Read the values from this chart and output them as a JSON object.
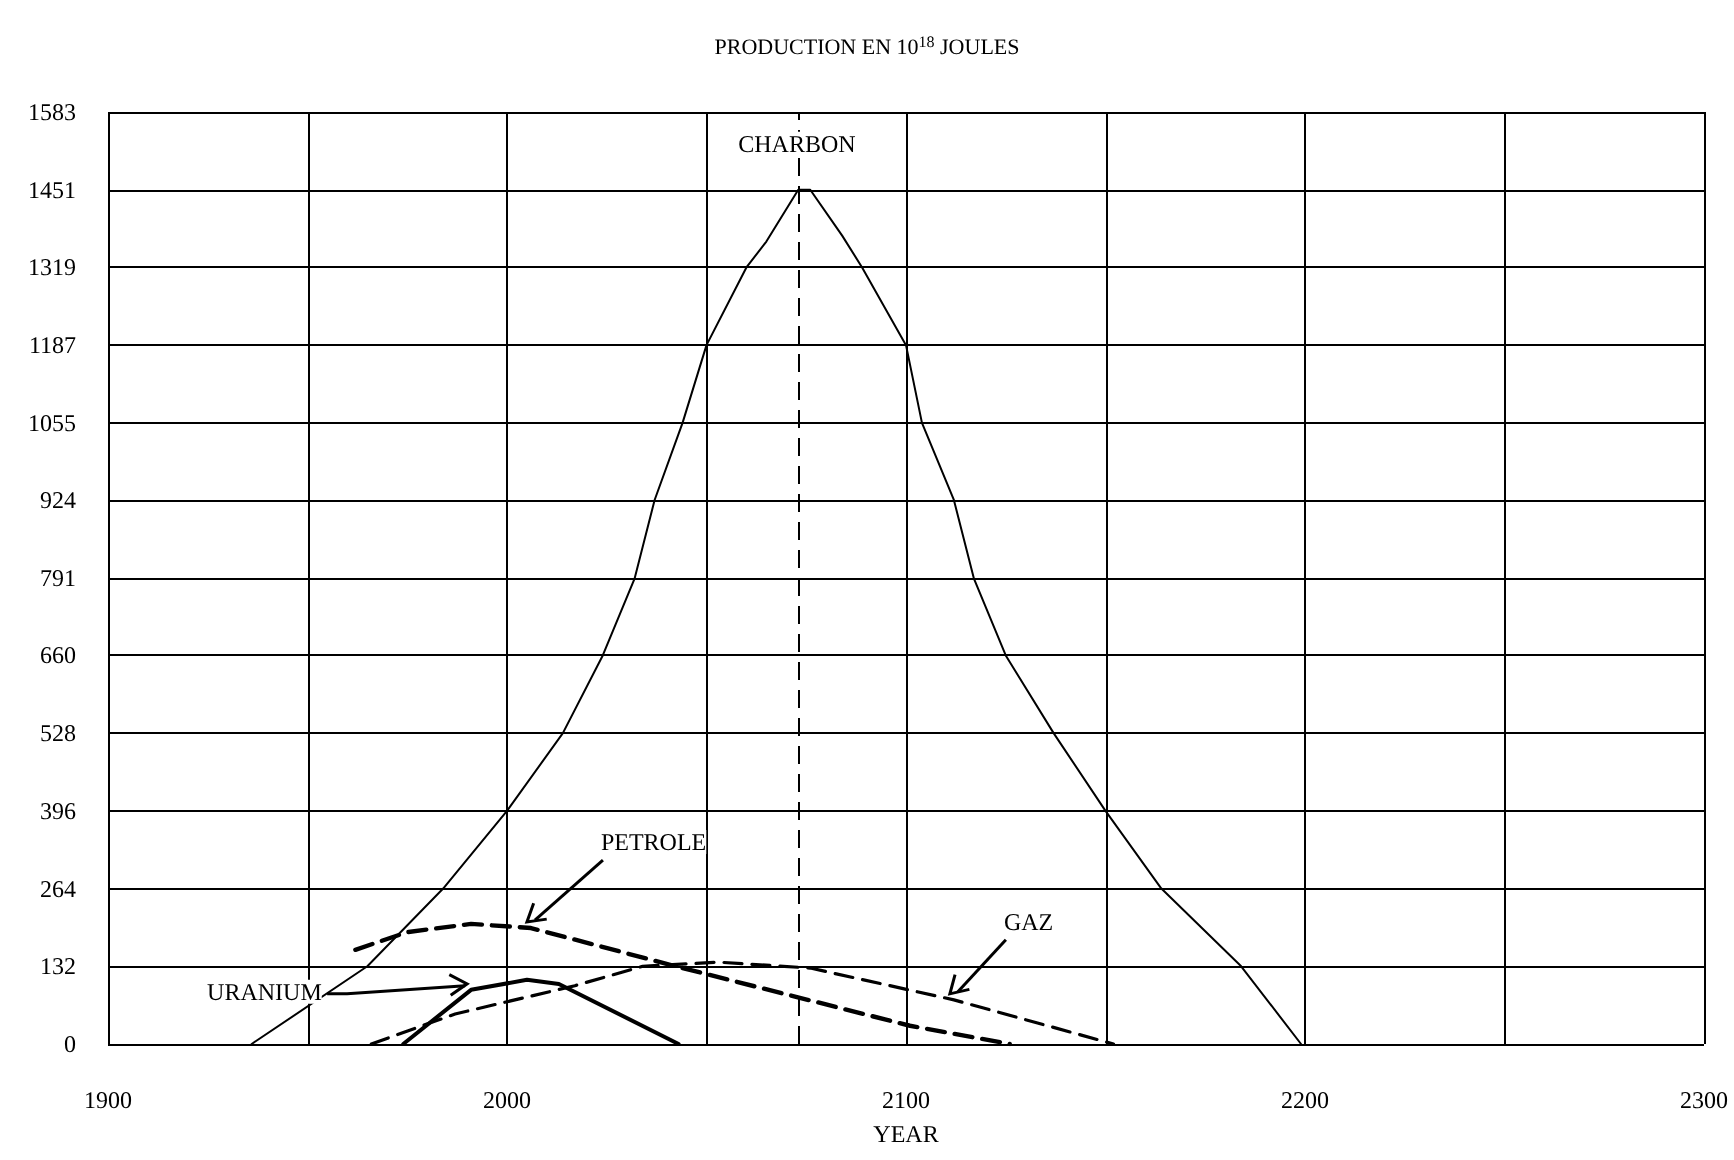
{
  "chart_data": {
    "type": "line",
    "title": "PRODUCTION EN 10$^{18}$ JOULES",
    "xlabel": "YEAR",
    "xlim": [
      1900,
      2300
    ],
    "xticks": [
      1900,
      {
        "value": 1950,
        "label": null
      },
      2000,
      {
        "value": 2050,
        "label": null
      },
      2100,
      {
        "value": 2150,
        "label": null
      },
      2200,
      {
        "value": 2250,
        "label": null
      },
      2300
    ],
    "ylim": [
      0,
      1583
    ],
    "yticks": [
      0,
      132,
      264,
      396,
      528,
      660,
      791,
      924,
      1055,
      1187,
      1319,
      1451,
      1583
    ],
    "grid": true,
    "legend": false,
    "marker": "none",
    "series": [
      {
        "name": "CHARBON",
        "color": "#000000",
        "line_style": "solid",
        "x": [
          1936,
          1965,
          1984,
          2000,
          2014,
          2024,
          2032,
          2037,
          2044,
          2050,
          2060,
          2065,
          2073,
          2076,
          2084,
          2089,
          2100,
          2104,
          2112,
          2117,
          2125,
          2137,
          2150,
          2164,
          2184,
          2199
        ],
        "values": [
          0,
          132,
          264,
          396,
          528,
          660,
          791,
          924,
          1055,
          1187,
          1319,
          1363,
          1451,
          1451,
          1373,
          1319,
          1187,
          1055,
          924,
          791,
          660,
          528,
          396,
          264,
          132,
          0
        ]
      },
      {
        "name": "URANIUM",
        "color": "#000000",
        "line_style": "solid",
        "x": [
          1974,
          1991,
          2005,
          2013,
          2043
        ],
        "values": [
          0,
          92,
          109,
          102,
          0
        ]
      },
      {
        "name": "PETROLE",
        "color": "#000000",
        "line_style": "dashed",
        "x": [
          1962,
          1975,
          1991,
          2006,
          2044,
          2101,
          2126
        ],
        "values": [
          160,
          190,
          204,
          197,
          129,
          31,
          0
        ]
      },
      {
        "name": "GAZ",
        "color": "#000000",
        "line_style": "dashed",
        "x": [
          1966,
          1987,
          2017,
          2034,
          2053,
          2076,
          2112,
          2152
        ],
        "values": [
          0,
          51,
          99,
          132,
          139,
          129,
          75,
          0
        ]
      }
    ],
    "ref_lines": [
      {
        "axis": "x",
        "value": 2073,
        "color": "#000000",
        "line_style": "dashed"
      }
    ]
  }
}
